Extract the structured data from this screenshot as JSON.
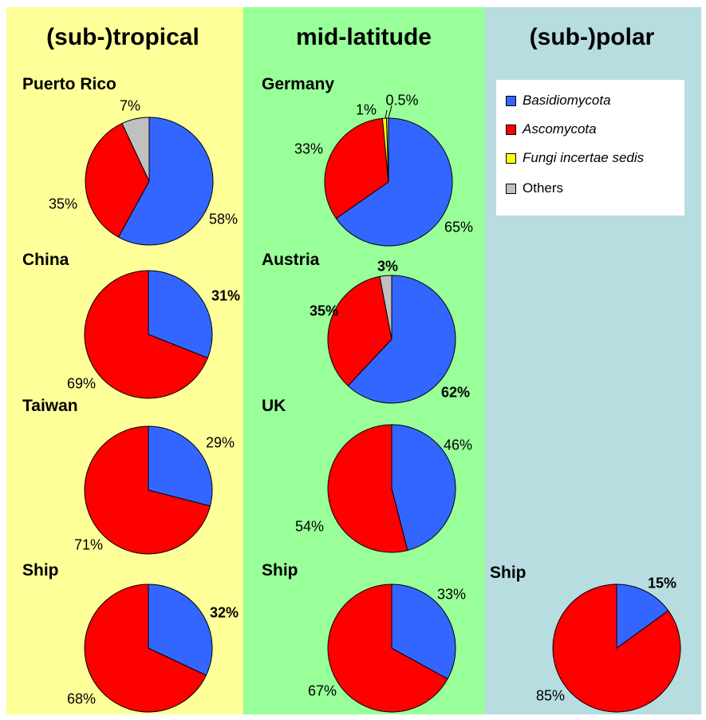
{
  "colors": {
    "Basidiomycota": "#3366ff",
    "Ascomycota": "#ff0000",
    "Fungi incertae sedis": "#ffff00",
    "Others": "#c0c0c0",
    "tropical_bg": "#ffff99",
    "mid_bg": "#99ff99",
    "polar_bg": "#b7dde1"
  },
  "columns": [
    {
      "id": "tropical",
      "title": "(sub-)tropical"
    },
    {
      "id": "mid",
      "title": "mid-latitude"
    },
    {
      "id": "polar",
      "title": "(sub-)polar"
    }
  ],
  "legend": [
    {
      "name": "Basidiomycota",
      "italic": true
    },
    {
      "name": "Ascomycota",
      "italic": true
    },
    {
      "name": "Fungi incertae sedis",
      "italic": true
    },
    {
      "name": "Others",
      "italic": false
    }
  ],
  "chart_data": [
    {
      "type": "pie",
      "column": "(sub-)tropical",
      "title": "Puerto Rico",
      "slices": [
        {
          "label": "Basidiomycota",
          "value": 58,
          "text": "58%"
        },
        {
          "label": "Ascomycota",
          "value": 35,
          "text": "35%"
        },
        {
          "label": "Others",
          "value": 7,
          "text": "7%"
        }
      ]
    },
    {
      "type": "pie",
      "column": "(sub-)tropical",
      "title": "China",
      "slices": [
        {
          "label": "Basidiomycota",
          "value": 31,
          "text": "31%"
        },
        {
          "label": "Ascomycota",
          "value": 69,
          "text": "69%"
        }
      ]
    },
    {
      "type": "pie",
      "column": "(sub-)tropical",
      "title": "Taiwan",
      "slices": [
        {
          "label": "Basidiomycota",
          "value": 29,
          "text": "29%"
        },
        {
          "label": "Ascomycota",
          "value": 71,
          "text": "71%"
        }
      ]
    },
    {
      "type": "pie",
      "column": "(sub-)tropical",
      "title": "Ship",
      "slices": [
        {
          "label": "Basidiomycota",
          "value": 32,
          "text": "32%"
        },
        {
          "label": "Ascomycota",
          "value": 68,
          "text": "68%"
        }
      ]
    },
    {
      "type": "pie",
      "column": "mid-latitude",
      "title": "Germany",
      "slices": [
        {
          "label": "Basidiomycota",
          "value": 65,
          "text": "65%"
        },
        {
          "label": "Ascomycota",
          "value": 33,
          "text": "33%"
        },
        {
          "label": "Fungi incertae sedis",
          "value": 1,
          "text": "1%"
        },
        {
          "label": "Others",
          "value": 0.5,
          "text": "0.5%"
        }
      ]
    },
    {
      "type": "pie",
      "column": "mid-latitude",
      "title": "Austria",
      "slices": [
        {
          "label": "Basidiomycota",
          "value": 62,
          "text": "62%"
        },
        {
          "label": "Ascomycota",
          "value": 35,
          "text": "35%"
        },
        {
          "label": "Others",
          "value": 3,
          "text": "3%"
        }
      ]
    },
    {
      "type": "pie",
      "column": "mid-latitude",
      "title": "UK",
      "slices": [
        {
          "label": "Basidiomycota",
          "value": 46,
          "text": "46%"
        },
        {
          "label": "Ascomycota",
          "value": 54,
          "text": "54%"
        }
      ]
    },
    {
      "type": "pie",
      "column": "mid-latitude",
      "title": "Ship",
      "slices": [
        {
          "label": "Basidiomycota",
          "value": 33,
          "text": "33%"
        },
        {
          "label": "Ascomycota",
          "value": 67,
          "text": "67%"
        }
      ]
    },
    {
      "type": "pie",
      "column": "(sub-)polar",
      "title": "Ship",
      "slices": [
        {
          "label": "Basidiomycota",
          "value": 15,
          "text": "15%"
        },
        {
          "label": "Ascomycota",
          "value": 85,
          "text": "85%"
        }
      ]
    }
  ]
}
